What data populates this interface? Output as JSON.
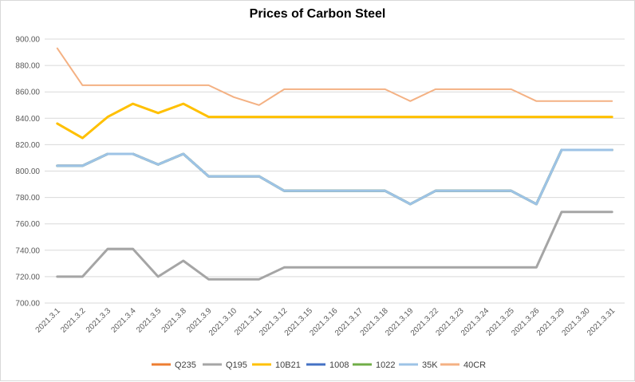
{
  "chart_data": {
    "type": "line",
    "title": "Prices of Carbon Steel",
    "xlabel": "",
    "ylabel": "",
    "ylim": [
      700,
      900
    ],
    "yticks": [
      "900.00",
      "880.00",
      "860.00",
      "840.00",
      "820.00",
      "800.00",
      "780.00",
      "760.00",
      "740.00",
      "720.00",
      "700.00"
    ],
    "grid": true,
    "legend_position": "bottom",
    "categories": [
      "2021.3.1",
      "2021.3.2",
      "2021.3.3",
      "2021.3.4",
      "2021.3.5",
      "2021.3.8",
      "2021.3.9",
      "2021.3.10",
      "2021.3.11",
      "2021.3.12",
      "2021.3.15",
      "2021.3.16",
      "2021.3.17",
      "2021.3.18",
      "2021.3.19",
      "2021.3.22",
      "2021.3.23",
      "2021.3.24",
      "2021.3.25",
      "2021.3.26",
      "2021.3.29",
      "2021.3.30",
      "2021.3.31"
    ],
    "series": [
      {
        "name": "Q235",
        "color": "#ED7D31",
        "values": [
          804,
          804,
          813,
          813,
          805,
          813,
          796,
          796,
          796,
          785,
          785,
          785,
          785,
          785,
          775,
          785,
          785,
          785,
          785,
          775,
          816,
          816,
          816
        ]
      },
      {
        "name": "Q195",
        "color": "#A5A5A5",
        "values": [
          720,
          720,
          741,
          741,
          720,
          732,
          718,
          718,
          718,
          727,
          727,
          727,
          727,
          727,
          727,
          727,
          727,
          727,
          727,
          727,
          769,
          769,
          769
        ]
      },
      {
        "name": "10B21",
        "color": "#FFC000",
        "values": [
          836,
          825,
          841,
          851,
          844,
          851,
          841,
          841,
          841,
          841,
          841,
          841,
          841,
          841,
          841,
          841,
          841,
          841,
          841,
          841,
          841,
          841,
          841
        ]
      },
      {
        "name": "1008",
        "color": "#4472C4",
        "values": [
          804,
          804,
          813,
          813,
          805,
          813,
          796,
          796,
          796,
          785,
          785,
          785,
          785,
          785,
          775,
          785,
          785,
          785,
          785,
          775,
          816,
          816,
          816
        ]
      },
      {
        "name": "1022",
        "color": "#70AD47",
        "values": [
          804,
          804,
          813,
          813,
          805,
          813,
          796,
          796,
          796,
          785,
          785,
          785,
          785,
          785,
          775,
          785,
          785,
          785,
          785,
          775,
          816,
          816,
          816
        ]
      },
      {
        "name": "35K",
        "color": "#9DC3E6",
        "values": [
          804,
          804,
          813,
          813,
          805,
          813,
          796,
          796,
          796,
          785,
          785,
          785,
          785,
          785,
          775,
          785,
          785,
          785,
          785,
          775,
          816,
          816,
          816
        ]
      },
      {
        "name": "40CR",
        "color": "#F4B183",
        "values": [
          893,
          865,
          865,
          865,
          865,
          865,
          865,
          856,
          850,
          862,
          862,
          862,
          862,
          862,
          853,
          862,
          862,
          862,
          862,
          853,
          853,
          853,
          853
        ]
      }
    ]
  }
}
